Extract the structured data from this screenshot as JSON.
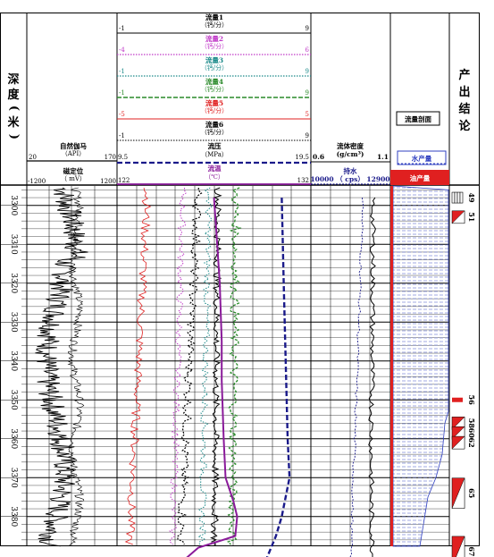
{
  "depth_track": {
    "title_chars": [
      "深",
      "度",
      "(",
      "米",
      ")"
    ],
    "ticks": [
      "3300",
      "3310",
      "3320",
      "3330",
      "3340",
      "3350",
      "3360",
      "3370",
      "3380",
      "3390"
    ]
  },
  "gr_track": {
    "gr": {
      "name": "自然伽马",
      "unit": "（API）",
      "min": "20",
      "max": "170"
    },
    "ccl": {
      "name": "磁定位",
      "unit": "（ mV）",
      "min": "-1200",
      "max": "1200"
    }
  },
  "flow_track": {
    "curves": [
      {
        "name": "流量1",
        "unit": "（钙/分）",
        "min": "-1",
        "max": "9",
        "color": "#000000"
      },
      {
        "name": "流量2",
        "unit": "（钙/分）",
        "min": "-4",
        "max": "6",
        "color": "#c03ac8"
      },
      {
        "name": "流量3",
        "unit": "（钙/分）",
        "min": "-1",
        "max": "9",
        "color": "#1c8a8a"
      },
      {
        "name": "流量4",
        "unit": "（钙/分）",
        "min": "-1",
        "max": "9",
        "color": "#2a8a2a"
      },
      {
        "name": "流量5",
        "unit": "（钙/分）",
        "min": "-5",
        "max": "5",
        "color": "#e02020"
      },
      {
        "name": "流量6",
        "unit": "（钙/分）",
        "min": "-1",
        "max": "9",
        "color": "#000000"
      }
    ],
    "pressure": {
      "name": "流压",
      "unit": "（MPa）",
      "min": "9.5",
      "max": "19.5",
      "color": "#1a1a8a"
    },
    "temperature": {
      "name": "流温",
      "unit": "（℃）",
      "min": "122",
      "max": "132",
      "color": "#8a1a9a"
    }
  },
  "density_track": {
    "density": {
      "name": "流体密度",
      "unit": "(g/cm³)",
      "min": "0.6",
      "max": "1.1"
    },
    "holdup": {
      "name": "持水",
      "unit": "10000 （ cps） 12900",
      "color": "#1a1a8a"
    }
  },
  "profile_track": {
    "title": "流量剖面",
    "water_label": "水产量",
    "oil_label": "油产量",
    "colors": {
      "water": "#3040c0",
      "oil": "#e02020"
    }
  },
  "conclusion_track": {
    "title_chars": [
      "产",
      "出",
      "结",
      "论"
    ],
    "layers": [
      "49",
      "51",
      "56",
      "58",
      "60",
      "62",
      "65",
      "67"
    ]
  },
  "chart_data": {
    "type": "line",
    "xlabel": "",
    "ylabel": "深度（米）",
    "depth_range": [
      3295,
      3392
    ],
    "series": [
      {
        "name": "流温",
        "unit": "℃",
        "x": [
          3298,
          3305,
          3320,
          3335,
          3345,
          3360,
          3370,
          3376,
          3380,
          3385,
          3388,
          3391
        ],
        "values": [
          127.0,
          127.1,
          127.3,
          127.4,
          127.4,
          127.5,
          127.6,
          128.0,
          128.2,
          128.1,
          126.2,
          125.5
        ]
      },
      {
        "name": "流压",
        "unit": "MPa",
        "x": [
          3298,
          3320,
          3340,
          3360,
          3370,
          3380,
          3385,
          3391
        ],
        "values": [
          18.0,
          18.1,
          18.2,
          18.3,
          18.4,
          18.0,
          17.7,
          17.2
        ]
      },
      {
        "name": "流体密度",
        "unit": "g/cm³",
        "x": [
          3298,
          3320,
          3340,
          3360,
          3380,
          3391
        ],
        "values": [
          0.99,
          0.99,
          0.985,
          0.98,
          0.98,
          0.99
        ]
      },
      {
        "name": "持水",
        "unit": "cps",
        "x": [
          3298,
          3320,
          3340,
          3360,
          3380,
          3391
        ],
        "values": [
          11900,
          11800,
          11700,
          11600,
          11500,
          11450
        ]
      }
    ]
  }
}
